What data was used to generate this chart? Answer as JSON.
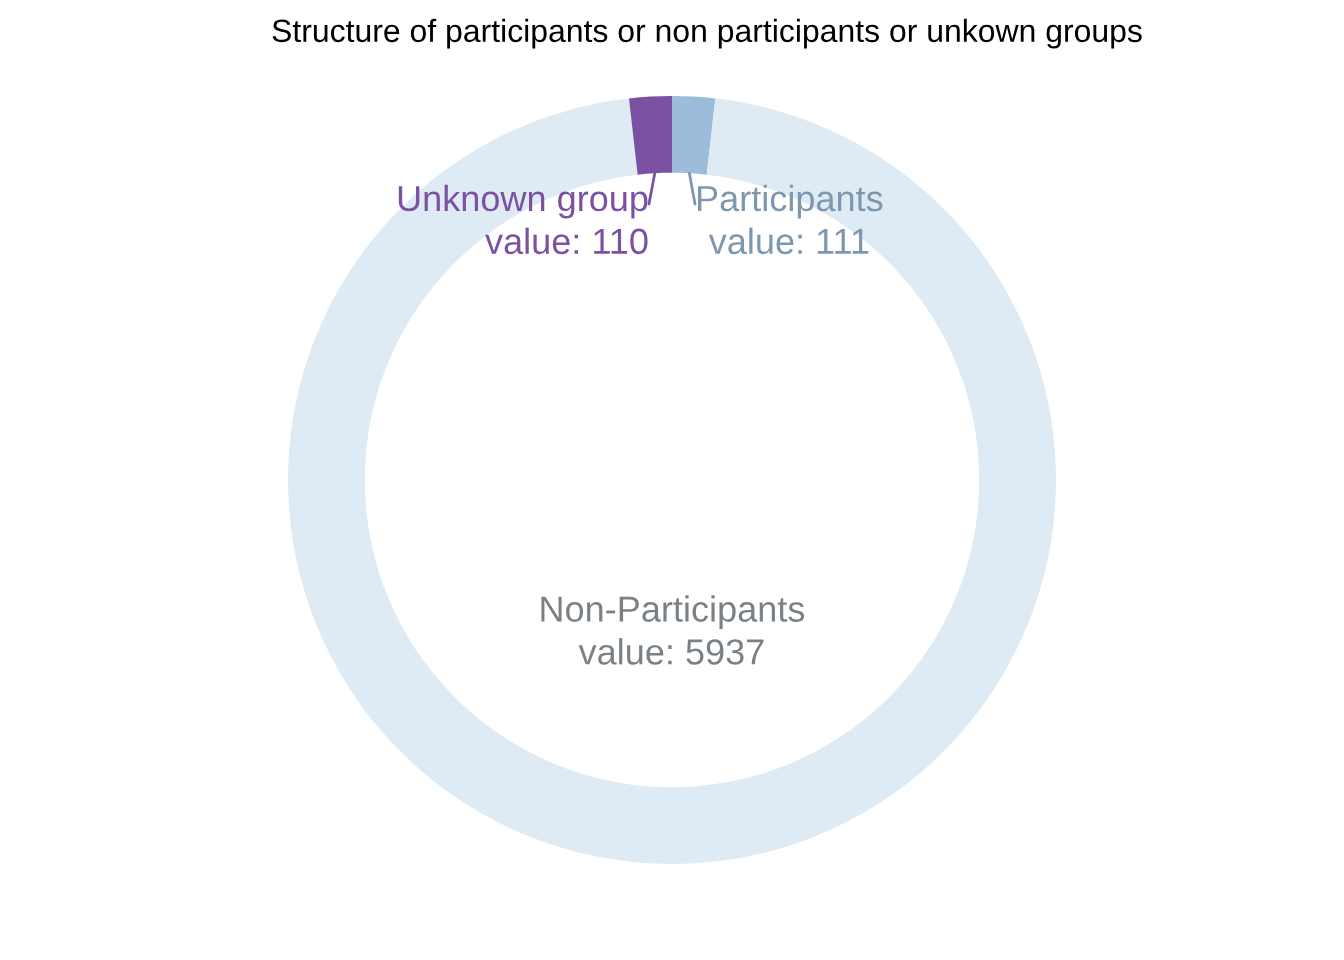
{
  "chart_data": {
    "type": "donut",
    "title": "Structure of participants or non participants or unkown groups",
    "categories": [
      "Participants",
      "Non-Participants",
      "Unknown group"
    ],
    "values": [
      111,
      5937,
      110
    ],
    "value_labels": [
      "value: 111",
      "value: 5937",
      "value: 110"
    ],
    "colors": [
      "#9dbbda",
      "#deebf4",
      "#7b52a3"
    ]
  }
}
